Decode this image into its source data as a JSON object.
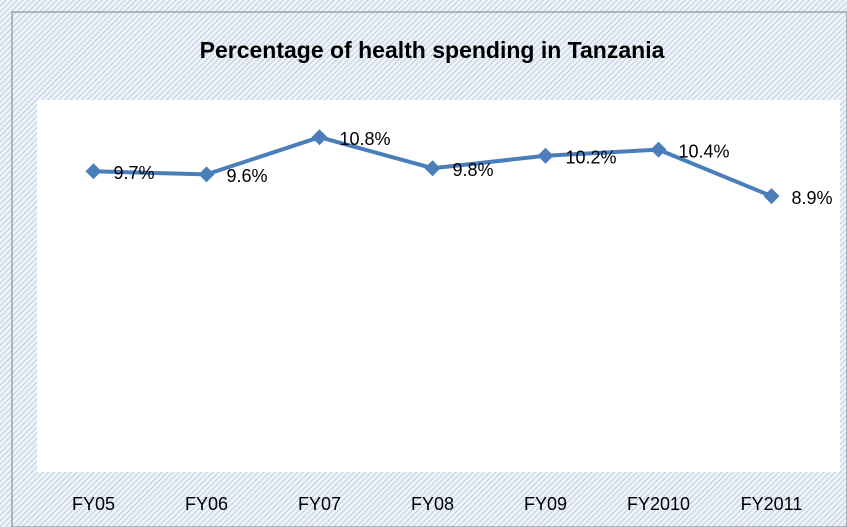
{
  "chart_data": {
    "type": "line",
    "title": "Percentage of health spending in Tanzania",
    "categories": [
      "FY05",
      "FY06",
      "FY07",
      "FY08",
      "FY09",
      "FY2010",
      "FY2011"
    ],
    "values": [
      9.7,
      9.6,
      10.8,
      9.8,
      10.2,
      10.4,
      8.9
    ],
    "value_labels": [
      "9.7%",
      "9.6%",
      "10.8%",
      "9.8%",
      "10.2%",
      "10.4%",
      "8.9%"
    ],
    "color": "#4a7ebb",
    "ylim": [
      0,
      12
    ]
  }
}
